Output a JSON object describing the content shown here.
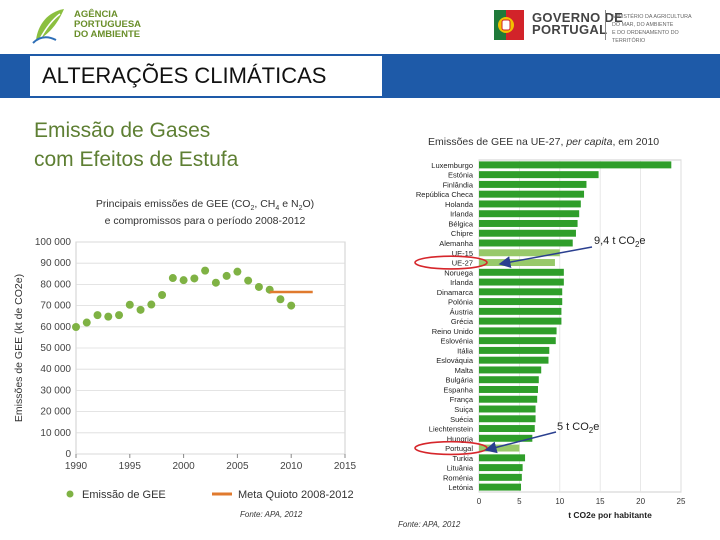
{
  "header": {
    "apa_line1": "AGÊNCIA",
    "apa_line2": "PORTUGUESA",
    "apa_line3": "DO AMBIENTE",
    "gov_line1": "GOVERNO DE",
    "gov_line2": "PORTUGAL",
    "ministry_line1": "MINISTÉRIO DA AGRICULTURA",
    "ministry_line2": "DO MAR, DO AMBIENTE",
    "ministry_line3": "E DO ORDENAMENTO DO TERRITÓRIO",
    "icons": [
      "apa-leaf-logo",
      "portugal-coat-of-arms-logo"
    ]
  },
  "slide": {
    "title": "ALTERAÇÕES CLIMÁTICAS",
    "subtitle_line1": "Emissão de Gases",
    "subtitle_line2": "com Efeitos de Estufa",
    "colors": {
      "band": "#1e5aa8",
      "subtitle": "#5e7f33"
    }
  },
  "left_chart_title": {
    "line1_a": "Principais emissões de GEE (CO",
    "sub1": "2",
    "line1_b": ", CH",
    "sub2": "4",
    "line1_c": " e N",
    "sub3": "2",
    "line1_d": "O)",
    "line2": "e compromissos para o período 2008-2012"
  },
  "left_source": "Fonte: APA, 2012",
  "right_title": {
    "a": "Emissões de GEE na UE-27, ",
    "b": "per capita",
    "c": ", em 2010"
  },
  "right_source": "Fonte: APA, 2012",
  "annotations": {
    "eu27_value": "9,4 t CO",
    "eu27_sub": "2",
    "eu27_tail": "e",
    "pt_value": "5 t CO",
    "pt_sub": "2",
    "pt_tail": "e"
  },
  "chart_data": [
    {
      "type": "scatter",
      "ylabel": "Emissões de GEE (kt de CO2e)",
      "ylim": [
        0,
        100000
      ],
      "xlim": [
        1990,
        2015
      ],
      "x_ticks": [
        1990,
        1995,
        2000,
        2005,
        2010,
        2015
      ],
      "y_ticks": [
        0,
        10000,
        20000,
        30000,
        40000,
        50000,
        60000,
        70000,
        80000,
        90000,
        100000
      ],
      "y_tick_labels": [
        "0",
        "10 000",
        "20 000",
        "30 000",
        "40 000",
        "50 000",
        "60 000",
        "70 000",
        "80 000",
        "90 000",
        "100 000"
      ],
      "series": [
        {
          "name": "Emissão de GEE",
          "color": "#7fb244",
          "x": [
            1990,
            1991,
            1992,
            1993,
            1994,
            1995,
            1996,
            1997,
            1998,
            1999,
            2000,
            2001,
            2002,
            2003,
            2004,
            2005,
            2006,
            2007,
            2008,
            2009,
            2010
          ],
          "y": [
            59900,
            62000,
            65500,
            64800,
            65500,
            70400,
            68000,
            70500,
            75000,
            83000,
            82000,
            82800,
            86500,
            80800,
            84000,
            86000,
            81800,
            78800,
            77500,
            73000,
            70000
          ]
        },
        {
          "name": "Meta Quioto 2008-2012",
          "color": "#e07a2e",
          "x": [
            2008,
            2012
          ],
          "y": [
            76400,
            76400
          ]
        }
      ],
      "grid": true,
      "legend": "bottom"
    },
    {
      "type": "bar",
      "orientation": "horizontal",
      "xlabel": "t CO2e por habitante",
      "xlim": [
        0,
        25
      ],
      "x_ticks": [
        0,
        5,
        10,
        15,
        20,
        25
      ],
      "categories": [
        "Luxemburgo",
        "Estónia",
        "Finlândia",
        "República Checa",
        "Holanda",
        "Irlanda",
        "Bélgica",
        "Chipre",
        "Alemanha",
        "UE-15",
        "UE-27",
        "Noruega",
        "Irlanda",
        "Dinamarca",
        "Polónia",
        "Áustria",
        "Grécia",
        "Reino Unido",
        "Eslovénia",
        "Itália",
        "Eslováquia",
        "Malta",
        "Bulgária",
        "Espanha",
        "França",
        "Suiça",
        "Suécia",
        "Liechtenstein",
        "Hungria",
        "Portugal",
        "Turkia",
        "Lituânia",
        "Roménia",
        "Letónia"
      ],
      "values": [
        23.8,
        14.8,
        13.3,
        13.0,
        12.6,
        12.4,
        12.2,
        12.0,
        11.6,
        10.0,
        9.4,
        10.5,
        10.5,
        10.3,
        10.3,
        10.2,
        10.2,
        9.6,
        9.5,
        8.7,
        8.6,
        7.7,
        7.4,
        7.3,
        7.2,
        7.0,
        7.0,
        6.9,
        6.6,
        5.0,
        5.7,
        5.4,
        5.3,
        5.2
      ],
      "highlighted": [
        "UE-15",
        "UE-27",
        "Portugal"
      ],
      "circled": [
        "UE-27",
        "Portugal"
      ],
      "color": "#2f9e2a",
      "highlight_color": "#98c96a",
      "grid": true
    }
  ]
}
